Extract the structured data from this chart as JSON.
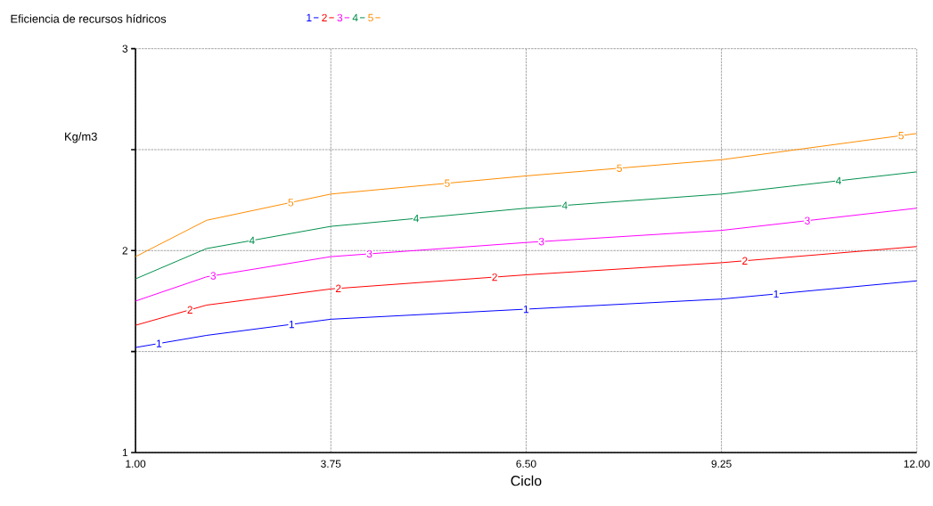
{
  "chart_data": {
    "type": "line",
    "title": "Eficiencia de recursos hídricos",
    "xlabel": "Ciclo",
    "ylabel": "Kg/m3",
    "x": [
      1,
      2,
      3.75,
      6.5,
      9.25,
      12
    ],
    "series": [
      {
        "name": "1",
        "color": "#0000ff",
        "values": [
          1.52,
          1.58,
          1.66,
          1.71,
          1.76,
          1.85
        ]
      },
      {
        "name": "2",
        "color": "#ff0000",
        "values": [
          1.63,
          1.73,
          1.81,
          1.88,
          1.94,
          2.02
        ]
      },
      {
        "name": "3",
        "color": "#ff00ff",
        "values": [
          1.75,
          1.87,
          1.97,
          2.04,
          2.1,
          2.21
        ]
      },
      {
        "name": "4",
        "color": "#008f4c",
        "values": [
          1.86,
          2.01,
          2.12,
          2.21,
          2.28,
          2.39
        ]
      },
      {
        "name": "5",
        "color": "#ff8c00",
        "values": [
          1.97,
          2.15,
          2.28,
          2.37,
          2.45,
          2.58
        ]
      }
    ],
    "xlim": [
      1,
      12
    ],
    "ylim": [
      1,
      3
    ],
    "xticks": [
      {
        "value": 1,
        "label": "1.00"
      },
      {
        "value": 3.75,
        "label": "3.75"
      },
      {
        "value": 6.5,
        "label": "6.50"
      },
      {
        "value": 9.25,
        "label": "9.25"
      },
      {
        "value": 12,
        "label": "12.00"
      }
    ],
    "yticks": [
      1,
      {
        "value": 1.5,
        "label": null
      },
      2,
      {
        "value": 2.5,
        "label": null
      },
      3
    ],
    "grid": true,
    "legend": "top left",
    "marker": "none",
    "line_style": "solid"
  }
}
